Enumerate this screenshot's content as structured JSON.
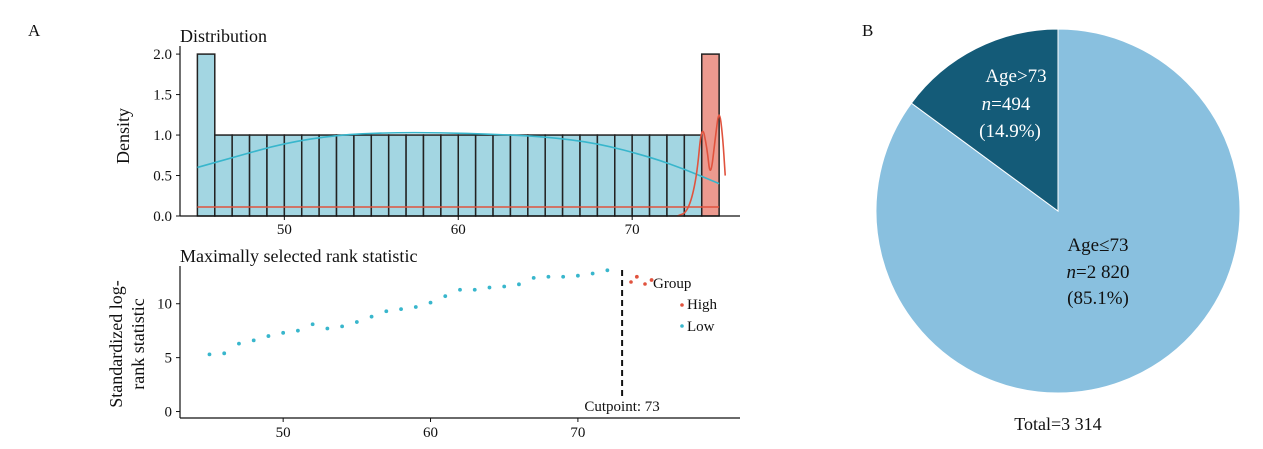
{
  "panels": {
    "a_label": "A",
    "b_label": "B"
  },
  "colors": {
    "low": "#38b6cc",
    "high": "#e0533e",
    "hist_low_fill": "#a3d6e2",
    "hist_high_fill": "#ec9a8f",
    "pie_light": "#89c0df",
    "pie_dark": "#145b78"
  },
  "chart_data": [
    {
      "type": "bar",
      "title": "Distribution",
      "xlabel": "",
      "ylabel": "Density",
      "xlim": [
        44,
        76.2
      ],
      "ylim": [
        0,
        2.1
      ],
      "xticks": [
        50,
        60,
        70
      ],
      "yticks": [
        "0.0",
        "0.5",
        "1.0",
        "1.5",
        "2.0"
      ],
      "grid": false,
      "series": [
        {
          "group": "Low",
          "bins": [
            {
              "x0": 45,
              "x1": 46,
              "density": 2.0
            },
            {
              "x0": 46,
              "x1": 47,
              "density": 1.0
            },
            {
              "x0": 47,
              "x1": 48,
              "density": 1.0
            },
            {
              "x0": 48,
              "x1": 49,
              "density": 1.0
            },
            {
              "x0": 49,
              "x1": 50,
              "density": 1.0
            },
            {
              "x0": 50,
              "x1": 51,
              "density": 1.0
            },
            {
              "x0": 51,
              "x1": 52,
              "density": 1.0
            },
            {
              "x0": 52,
              "x1": 53,
              "density": 1.0
            },
            {
              "x0": 53,
              "x1": 54,
              "density": 1.0
            },
            {
              "x0": 54,
              "x1": 55,
              "density": 1.0
            },
            {
              "x0": 55,
              "x1": 56,
              "density": 1.0
            },
            {
              "x0": 56,
              "x1": 57,
              "density": 1.0
            },
            {
              "x0": 57,
              "x1": 58,
              "density": 1.0
            },
            {
              "x0": 58,
              "x1": 59,
              "density": 1.0
            },
            {
              "x0": 59,
              "x1": 60,
              "density": 1.0
            },
            {
              "x0": 60,
              "x1": 61,
              "density": 1.0
            },
            {
              "x0": 61,
              "x1": 62,
              "density": 1.0
            },
            {
              "x0": 62,
              "x1": 63,
              "density": 1.0
            },
            {
              "x0": 63,
              "x1": 64,
              "density": 1.0
            },
            {
              "x0": 64,
              "x1": 65,
              "density": 1.0
            },
            {
              "x0": 65,
              "x1": 66,
              "density": 1.0
            },
            {
              "x0": 66,
              "x1": 67,
              "density": 1.0
            },
            {
              "x0": 67,
              "x1": 68,
              "density": 1.0
            },
            {
              "x0": 68,
              "x1": 69,
              "density": 1.0
            },
            {
              "x0": 69,
              "x1": 70,
              "density": 1.0
            },
            {
              "x0": 70,
              "x1": 71,
              "density": 1.0
            },
            {
              "x0": 71,
              "x1": 72,
              "density": 1.0
            },
            {
              "x0": 72,
              "x1": 73,
              "density": 1.0
            },
            {
              "x0": 73,
              "x1": 74,
              "density": 1.0
            }
          ],
          "density_curve": [
            [
              45,
              0.6
            ],
            [
              47,
              0.72
            ],
            [
              50,
              0.9
            ],
            [
              53,
              1.0
            ],
            [
              56,
              1.03
            ],
            [
              59,
              1.03
            ],
            [
              62,
              1.01
            ],
            [
              65,
              0.98
            ],
            [
              68,
              0.9
            ],
            [
              71,
              0.73
            ],
            [
              73,
              0.58
            ],
            [
              75,
              0.4
            ]
          ]
        },
        {
          "group": "High",
          "bins": [
            {
              "x0": 74,
              "x1": 75,
              "density": 2.0
            }
          ],
          "density_curve": [
            [
              72.6,
              0.0
            ],
            [
              73.2,
              0.05
            ],
            [
              73.7,
              0.45
            ],
            [
              74.0,
              1.15
            ],
            [
              74.3,
              0.85
            ],
            [
              74.5,
              0.45
            ],
            [
              74.8,
              1.0
            ],
            [
              75.0,
              1.33
            ],
            [
              75.2,
              1.0
            ],
            [
              75.35,
              0.5
            ]
          ]
        }
      ]
    },
    {
      "type": "scatter",
      "title": "Maximally selected rank statistic",
      "xlabel": "",
      "ylabel_lines": [
        "Standardized log-",
        "rank statistic"
      ],
      "xlim": [
        43,
        81
      ],
      "ylim": [
        -0.6,
        13.5
      ],
      "xticks": [
        50,
        60,
        70
      ],
      "yticks": [
        0,
        5,
        10
      ],
      "cutpoint": 73,
      "cutpoint_label": "Cutpoint: 73",
      "legend": {
        "title": "Group",
        "items": [
          "High",
          "Low"
        ],
        "position": "right"
      },
      "series": [
        {
          "name": "Low",
          "x": [
            45,
            46,
            47,
            48,
            49,
            50,
            51,
            52,
            53,
            54,
            55,
            56,
            57,
            58,
            59,
            60,
            61,
            62,
            63,
            64,
            65,
            66,
            67,
            68,
            69,
            70,
            71,
            72
          ],
          "y": [
            5.3,
            5.4,
            6.3,
            6.6,
            7.0,
            7.3,
            7.5,
            8.1,
            7.7,
            7.9,
            8.3,
            8.8,
            9.3,
            9.5,
            9.7,
            10.1,
            10.7,
            11.3,
            11.3,
            11.5,
            11.6,
            11.8,
            12.4,
            12.5,
            12.5,
            12.6,
            12.8,
            13.1
          ]
        },
        {
          "name": "High",
          "x": [
            74,
            75
          ],
          "y": [
            12.5,
            12.2
          ]
        }
      ]
    },
    {
      "type": "pie",
      "slices": [
        {
          "label": "Age≤73",
          "n_label": "n=2 820",
          "pct_label": "(85.1%)",
          "value": 2820,
          "percent": 85.1
        },
        {
          "label": "Age>73",
          "n_label": "n=494",
          "pct_label": "(14.9%)",
          "value": 494,
          "percent": 14.9
        }
      ],
      "total_label": "Total=3 314"
    }
  ]
}
